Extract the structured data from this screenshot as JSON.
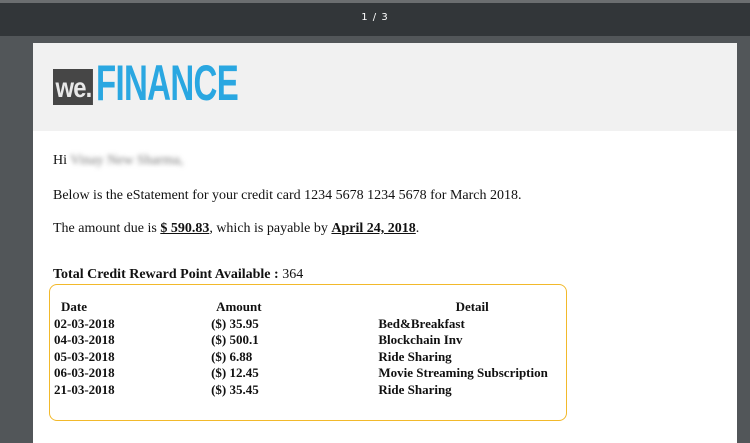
{
  "viewer": {
    "page_indicator": "1 / 3"
  },
  "logo": {
    "we": "we.",
    "finance": "FINANCE",
    "brand_color": "#2aa7e1"
  },
  "email": {
    "greeting": "Hi",
    "recipient_name_blurred": "Vinay New Sharma,",
    "statement_line": "Below is the eStatement for your credit card 1234 5678 1234 5678 for March 2018.",
    "amount_prefix": "The amount due is ",
    "amount_due": "$ 590.83",
    "amount_middle": ", which is payable by ",
    "due_date": "April 24, 2018",
    "amount_suffix": ".",
    "reward_label": "Total Credit Reward Point Available : ",
    "reward_points": "364"
  },
  "transactions": {
    "headers": [
      "Date",
      "Amount",
      "Detail"
    ],
    "rows": [
      [
        "02-03-2018",
        "($) 35.95",
        "Bed&Breakfast"
      ],
      [
        "04-03-2018",
        "($) 500.1",
        "Blockchain Inv"
      ],
      [
        "05-03-2018",
        "($) 6.88",
        "Ride Sharing"
      ],
      [
        "06-03-2018",
        "($) 12.45",
        "Movie Streaming Subscription"
      ],
      [
        "21-03-2018",
        "($) 35.45",
        "Ride Sharing"
      ]
    ],
    "border_color": "#f2b92b"
  }
}
